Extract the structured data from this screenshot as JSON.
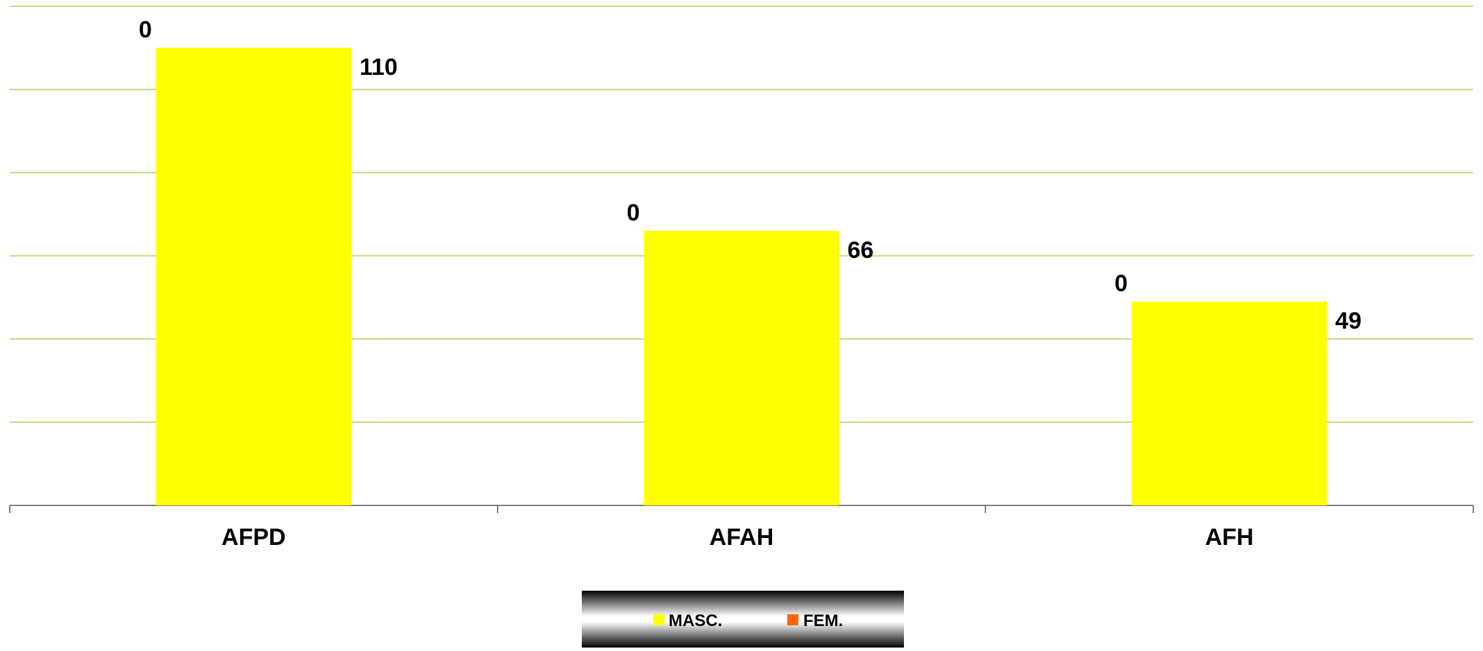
{
  "chart_data": {
    "type": "bar",
    "title": "",
    "xlabel": "",
    "ylabel": "",
    "categories": [
      "AFPD",
      "AFAH",
      "AFH"
    ],
    "series": [
      {
        "name": "MASC.",
        "values": [
          110,
          66,
          49
        ],
        "color": "#FFFF00"
      },
      {
        "name": "FEM.",
        "values": [
          0,
          0,
          0
        ],
        "color": "#FF6600"
      }
    ],
    "ylim": [
      0,
      120
    ],
    "y_gridline_step": 20,
    "grid": true,
    "grid_color": "#9ACD32",
    "legend_placement": "bottom-center",
    "legend": [
      {
        "label": "MASC.",
        "color": "#FFFF00"
      },
      {
        "label": "FEM.",
        "color": "#FF6600"
      }
    ]
  }
}
